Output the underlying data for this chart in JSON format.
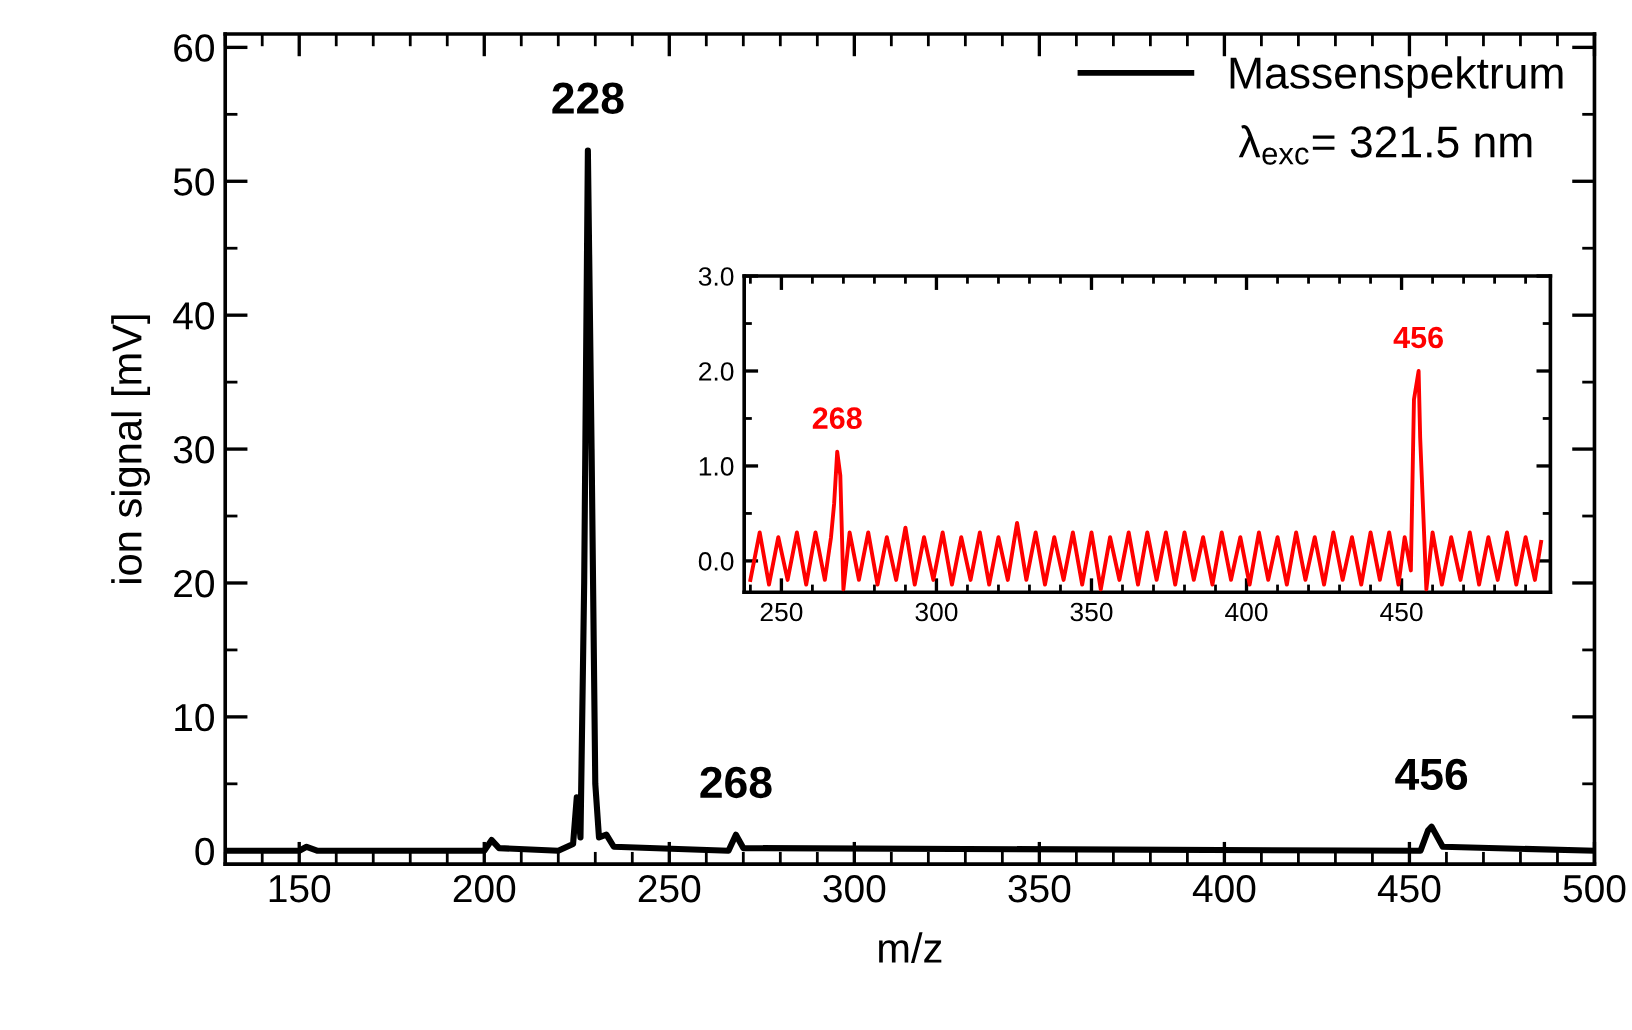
{
  "chart_data": [
    {
      "type": "line",
      "xlabel": "m/z",
      "ylabel": "ion signal [mV]",
      "xlim": [
        130,
        500
      ],
      "ylim": [
        -1,
        61
      ],
      "xticks": [
        150,
        200,
        250,
        300,
        350,
        400,
        450,
        500
      ],
      "yticks": [
        0,
        10,
        20,
        30,
        40,
        50,
        60
      ],
      "grid": false,
      "legend": "top right",
      "marker": "none",
      "line_style": "solid",
      "series": [
        {
          "name": "Massenspektrum",
          "color": "#000000",
          "x": [
            130,
            150,
            152,
            155,
            200,
            202,
            204,
            220,
            224,
            225,
            226,
            227,
            228,
            229,
            230,
            231,
            233,
            235,
            266,
            268,
            270,
            453,
            455,
            456,
            457,
            459,
            500
          ],
          "values": [
            0,
            0,
            0.3,
            0,
            0,
            0.8,
            0.2,
            0,
            0.5,
            4,
            1,
            20,
            52.3,
            30,
            5,
            1,
            1.2,
            0.3,
            0,
            1.2,
            0.2,
            0,
            1.5,
            1.8,
            1.3,
            0.3,
            0
          ]
        }
      ],
      "annotations": [
        {
          "text": "228",
          "x": 228,
          "y": 52.3
        },
        {
          "text": "268",
          "x": 268,
          "y": 1.2
        },
        {
          "text": "456",
          "x": 456,
          "y": 1.8
        },
        "λ$_{exc}$= 321.5 nm"
      ]
    },
    {
      "type": "line",
      "xlim": [
        238,
        498
      ],
      "ylim": [
        -0.33,
        3.0
      ],
      "xticks": [
        250,
        300,
        350,
        400,
        450
      ],
      "yticks": [
        {
          "value": 0,
          "label": "0.0"
        },
        {
          "value": 1,
          "label": "1.0"
        },
        {
          "value": 2,
          "label": "2.0"
        },
        {
          "value": 3,
          "label": "3.0"
        }
      ],
      "grid": false,
      "marker": "none",
      "line_style": "solid",
      "series": [
        {
          "color": "#ff0000",
          "x": [
            240,
            243,
            246,
            249,
            252,
            255,
            258,
            261,
            264,
            266,
            267,
            268,
            269,
            270,
            272,
            275,
            278,
            281,
            284,
            287,
            290,
            293,
            296,
            299,
            302,
            305,
            308,
            311,
            314,
            317,
            320,
            323,
            326,
            329,
            332,
            335,
            338,
            341,
            344,
            347,
            350,
            353,
            356,
            359,
            362,
            365,
            368,
            371,
            374,
            377,
            380,
            383,
            386,
            389,
            392,
            395,
            398,
            401,
            404,
            407,
            410,
            413,
            416,
            419,
            422,
            425,
            428,
            431,
            434,
            437,
            440,
            443,
            446,
            449,
            451,
            453,
            454,
            455,
            455.5,
            456,
            457,
            458,
            460,
            463,
            466,
            469,
            472,
            475,
            478,
            481,
            484,
            487,
            490,
            493,
            495
          ],
          "values": [
            -0.2,
            0.3,
            -0.25,
            0.25,
            -0.2,
            0.3,
            -0.25,
            0.3,
            -0.2,
            0.25,
            0.6,
            1.15,
            0.9,
            -0.3,
            0.3,
            -0.2,
            0.3,
            -0.25,
            0.25,
            -0.2,
            0.35,
            -0.25,
            0.25,
            -0.2,
            0.3,
            -0.25,
            0.25,
            -0.2,
            0.3,
            -0.25,
            0.25,
            -0.2,
            0.4,
            -0.2,
            0.3,
            -0.25,
            0.25,
            -0.2,
            0.3,
            -0.25,
            0.3,
            -0.3,
            0.25,
            -0.2,
            0.3,
            -0.25,
            0.3,
            -0.2,
            0.3,
            -0.25,
            0.3,
            -0.2,
            0.25,
            -0.25,
            0.3,
            -0.2,
            0.25,
            -0.25,
            0.3,
            -0.2,
            0.25,
            -0.25,
            0.3,
            -0.2,
            0.25,
            -0.25,
            0.3,
            -0.2,
            0.25,
            -0.25,
            0.3,
            -0.2,
            0.3,
            -0.25,
            0.25,
            -0.1,
            1.7,
            1.9,
            2.0,
            1.3,
            0.5,
            -0.3,
            0.3,
            -0.25,
            0.25,
            -0.2,
            0.3,
            -0.25,
            0.25,
            -0.2,
            0.3,
            -0.25,
            0.25,
            -0.2,
            0.2
          ]
        }
      ],
      "annotations": [
        {
          "text": "268",
          "x": 268,
          "y": 1.15
        },
        {
          "text": "456",
          "x": 455.5,
          "y": 2.0
        }
      ]
    }
  ]
}
